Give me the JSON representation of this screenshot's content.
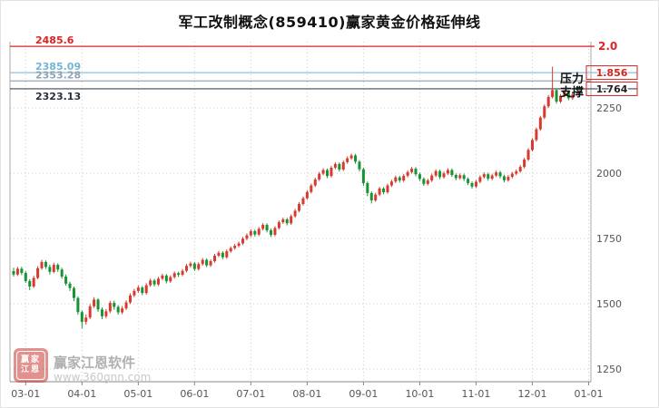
{
  "page": {
    "title": "军工改制概念(859410)赢家黄金价格延伸线"
  },
  "watermark": {
    "brand": "赢家江恩软件",
    "url": "www.360gnn.com",
    "logo_row1": "赢家",
    "logo_row2": "江恩"
  },
  "side_labels": {
    "resistance": "压力",
    "support": "支撑"
  },
  "chart_data": {
    "type": "candlestick",
    "title": "军工改制概念(859410)赢家黄金价格延伸线",
    "xlabel": "",
    "ylabel": "",
    "ylim": [
      1250,
      2500
    ],
    "grid": "dotted",
    "y_ticks": [
      "2250",
      "2000",
      "1750",
      "1500",
      "1250"
    ],
    "y_tick_values": [
      2250,
      2000,
      1750,
      1500,
      1250
    ],
    "x_ticks": [
      "03-01",
      "04-01",
      "05-01",
      "06-01",
      "07-01",
      "08-01",
      "09-01",
      "10-01",
      "11-01",
      "12-01",
      "01-01"
    ],
    "colors": {
      "up": "#d73a2e",
      "down": "#169433",
      "grid": "#cccccc",
      "axis": "#aaaaaa",
      "axis_text": "#555555",
      "box_border": "#d42222"
    },
    "ref_lines": [
      {
        "price": 2485.6,
        "label": "2485.6",
        "label_color": "#e02222",
        "line_color": "#e02222",
        "label_pos": "above",
        "ratio": "2.0",
        "ratio_color": "#e02222",
        "boxed": false
      },
      {
        "price": 2385.09,
        "label": "2385.09",
        "label_color": "#74b4d4",
        "line_color": "#8cc0dc",
        "label_pos": "above",
        "ratio": "1.856",
        "ratio_color": "#d42222",
        "boxed": true
      },
      {
        "price": 2353.28,
        "label": "2353.28",
        "label_color": "#93a3b3",
        "line_color": "#9aa8b4",
        "label_pos": "above",
        "ratio": "",
        "ratio_color": "#222222",
        "boxed": false
      },
      {
        "price": 2323.13,
        "label": "2323.13",
        "label_color": "#26313c",
        "line_color": "#3c4a56",
        "label_pos": "below",
        "ratio": "1.764",
        "ratio_color": "#222222",
        "boxed": true
      }
    ],
    "candles": [
      [
        1625,
        1638,
        1604,
        1612
      ],
      [
        1612,
        1641,
        1606,
        1634
      ],
      [
        1634,
        1642,
        1610,
        1618
      ],
      [
        1618,
        1624,
        1580,
        1587
      ],
      [
        1587,
        1594,
        1552,
        1566
      ],
      [
        1566,
        1607,
        1560,
        1599
      ],
      [
        1599,
        1644,
        1594,
        1636
      ],
      [
        1636,
        1668,
        1630,
        1660
      ],
      [
        1660,
        1666,
        1633,
        1641
      ],
      [
        1641,
        1650,
        1612,
        1622
      ],
      [
        1622,
        1657,
        1617,
        1649
      ],
      [
        1649,
        1655,
        1622,
        1631
      ],
      [
        1631,
        1638,
        1596,
        1604
      ],
      [
        1604,
        1612,
        1569,
        1577
      ],
      [
        1577,
        1584,
        1549,
        1560
      ],
      [
        1560,
        1566,
        1510,
        1522
      ],
      [
        1522,
        1528,
        1458,
        1468
      ],
      [
        1468,
        1474,
        1405,
        1431
      ],
      [
        1431,
        1459,
        1420,
        1447
      ],
      [
        1447,
        1499,
        1441,
        1490
      ],
      [
        1490,
        1525,
        1484,
        1516
      ],
      [
        1516,
        1521,
        1469,
        1478
      ],
      [
        1478,
        1486,
        1441,
        1452
      ],
      [
        1452,
        1480,
        1444,
        1471
      ],
      [
        1471,
        1511,
        1464,
        1503
      ],
      [
        1503,
        1512,
        1477,
        1488
      ],
      [
        1488,
        1495,
        1458,
        1467
      ],
      [
        1467,
        1491,
        1460,
        1482
      ],
      [
        1482,
        1513,
        1476,
        1505
      ],
      [
        1505,
        1540,
        1499,
        1532
      ],
      [
        1532,
        1557,
        1525,
        1549
      ],
      [
        1549,
        1570,
        1542,
        1562
      ],
      [
        1562,
        1568,
        1533,
        1541
      ],
      [
        1541,
        1579,
        1535,
        1571
      ],
      [
        1571,
        1596,
        1565,
        1589
      ],
      [
        1589,
        1595,
        1566,
        1574
      ],
      [
        1574,
        1603,
        1568,
        1596
      ],
      [
        1596,
        1615,
        1590,
        1608
      ],
      [
        1608,
        1614,
        1578,
        1586
      ],
      [
        1586,
        1609,
        1580,
        1602
      ],
      [
        1602,
        1624,
        1596,
        1617
      ],
      [
        1617,
        1623,
        1602,
        1611
      ],
      [
        1611,
        1633,
        1605,
        1626
      ],
      [
        1626,
        1652,
        1620,
        1645
      ],
      [
        1645,
        1661,
        1638,
        1654
      ],
      [
        1654,
        1660,
        1626,
        1633
      ],
      [
        1633,
        1659,
        1627,
        1652
      ],
      [
        1652,
        1675,
        1646,
        1668
      ],
      [
        1668,
        1674,
        1640,
        1647
      ],
      [
        1647,
        1670,
        1641,
        1663
      ],
      [
        1663,
        1691,
        1657,
        1684
      ],
      [
        1684,
        1702,
        1678,
        1695
      ],
      [
        1695,
        1701,
        1670,
        1678
      ],
      [
        1678,
        1708,
        1672,
        1701
      ],
      [
        1701,
        1720,
        1695,
        1713
      ],
      [
        1713,
        1729,
        1707,
        1722
      ],
      [
        1722,
        1738,
        1716,
        1731
      ],
      [
        1731,
        1756,
        1725,
        1749
      ],
      [
        1749,
        1769,
        1743,
        1762
      ],
      [
        1762,
        1785,
        1756,
        1778
      ],
      [
        1778,
        1784,
        1757,
        1765
      ],
      [
        1765,
        1794,
        1759,
        1787
      ],
      [
        1787,
        1809,
        1781,
        1802
      ],
      [
        1802,
        1808,
        1773,
        1781
      ],
      [
        1781,
        1788,
        1756,
        1764
      ],
      [
        1764,
        1797,
        1758,
        1790
      ],
      [
        1790,
        1819,
        1784,
        1812
      ],
      [
        1812,
        1830,
        1806,
        1823
      ],
      [
        1823,
        1829,
        1800,
        1808
      ],
      [
        1808,
        1842,
        1802,
        1835
      ],
      [
        1835,
        1863,
        1829,
        1856
      ],
      [
        1856,
        1889,
        1850,
        1882
      ],
      [
        1882,
        1911,
        1876,
        1904
      ],
      [
        1904,
        1935,
        1898,
        1928
      ],
      [
        1928,
        1960,
        1922,
        1953
      ],
      [
        1953,
        1983,
        1947,
        1976
      ],
      [
        1976,
        2005,
        1970,
        1998
      ],
      [
        1998,
        2019,
        1992,
        2012
      ],
      [
        2012,
        2018,
        1981,
        1989
      ],
      [
        1989,
        2028,
        1983,
        2021
      ],
      [
        2021,
        2042,
        2015,
        2035
      ],
      [
        2035,
        2041,
        2006,
        2014
      ],
      [
        2014,
        2049,
        2008,
        2042
      ],
      [
        2042,
        2064,
        2036,
        2057
      ],
      [
        2057,
        2075,
        2051,
        2068
      ],
      [
        2068,
        2074,
        2036,
        2044
      ],
      [
        2044,
        2050,
        2007,
        2015
      ],
      [
        2015,
        2021,
        1951,
        1962
      ],
      [
        1962,
        1968,
        1912,
        1924
      ],
      [
        1924,
        1930,
        1884,
        1896
      ],
      [
        1896,
        1925,
        1890,
        1918
      ],
      [
        1918,
        1948,
        1912,
        1941
      ],
      [
        1941,
        1947,
        1919,
        1927
      ],
      [
        1927,
        1960,
        1921,
        1953
      ],
      [
        1953,
        1975,
        1947,
        1968
      ],
      [
        1968,
        1991,
        1962,
        1984
      ],
      [
        1984,
        1990,
        1964,
        1972
      ],
      [
        1972,
        1997,
        1966,
        1990
      ],
      [
        1990,
        2011,
        1984,
        2004
      ],
      [
        2004,
        2024,
        1998,
        2017
      ],
      [
        2017,
        2023,
        1988,
        1996
      ],
      [
        1996,
        2002,
        1970,
        1978
      ],
      [
        1978,
        1984,
        1951,
        1959
      ],
      [
        1959,
        1979,
        1953,
        1972
      ],
      [
        1972,
        1998,
        1966,
        1991
      ],
      [
        1991,
        2015,
        1985,
        2008
      ],
      [
        2008,
        2014,
        1977,
        1985
      ],
      [
        1985,
        2006,
        1979,
        1999
      ],
      [
        1999,
        2019,
        1993,
        2012
      ],
      [
        2012,
        2018,
        1986,
        1993
      ],
      [
        1993,
        1999,
        1973,
        1981
      ],
      [
        1981,
        1999,
        1975,
        1992
      ],
      [
        1992,
        1998,
        1970,
        1978
      ],
      [
        1978,
        1984,
        1954,
        1962
      ],
      [
        1962,
        1968,
        1941,
        1949
      ],
      [
        1949,
        1974,
        1943,
        1967
      ],
      [
        1967,
        1992,
        1961,
        1985
      ],
      [
        1985,
        2003,
        1979,
        1996
      ],
      [
        1996,
        2002,
        1971,
        1979
      ],
      [
        1979,
        1998,
        1973,
        1991
      ],
      [
        1991,
        2010,
        1985,
        2003
      ],
      [
        2003,
        2009,
        1980,
        1988
      ],
      [
        1988,
        1994,
        1965,
        1973
      ],
      [
        1973,
        1993,
        1967,
        1986
      ],
      [
        1986,
        2005,
        1980,
        1998
      ],
      [
        1998,
        2014,
        1992,
        2007
      ],
      [
        2007,
        2031,
        2001,
        2024
      ],
      [
        2024,
        2059,
        2018,
        2052
      ],
      [
        2052,
        2096,
        2046,
        2089
      ],
      [
        2089,
        2134,
        2083,
        2127
      ],
      [
        2127,
        2175,
        2121,
        2168
      ],
      [
        2168,
        2220,
        2162,
        2213
      ],
      [
        2213,
        2263,
        2207,
        2256
      ],
      [
        2256,
        2299,
        2250,
        2292
      ],
      [
        2292,
        2408,
        2286,
        2318
      ],
      [
        2318,
        2324,
        2266,
        2274
      ],
      [
        2274,
        2303,
        2268,
        2296
      ],
      [
        2296,
        2319,
        2290,
        2312
      ],
      [
        2312,
        2318,
        2279,
        2287
      ],
      [
        2287,
        2308,
        2281,
        2301
      ]
    ]
  }
}
